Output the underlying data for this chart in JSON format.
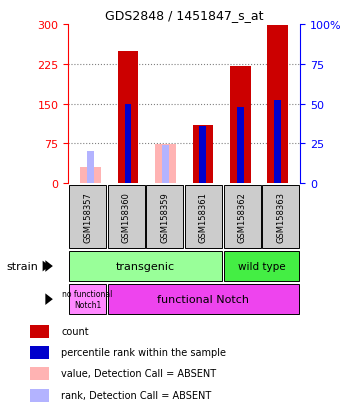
{
  "title": "GDS2848 / 1451847_s_at",
  "samples": [
    "GSM158357",
    "GSM158360",
    "GSM158359",
    "GSM158361",
    "GSM158362",
    "GSM158363"
  ],
  "count_values": [
    null,
    248,
    null,
    110,
    220,
    297
  ],
  "count_absent_values": [
    30,
    null,
    73,
    null,
    null,
    null
  ],
  "rank_values": [
    null,
    50,
    null,
    36,
    48,
    52
  ],
  "rank_absent_values": [
    20,
    null,
    24,
    null,
    null,
    null
  ],
  "ylim_left": [
    0,
    300
  ],
  "ylim_right": [
    0,
    100
  ],
  "yticks_left": [
    0,
    75,
    150,
    225,
    300
  ],
  "yticks_right": [
    0,
    25,
    50,
    75,
    100
  ],
  "color_count": "#cc0000",
  "color_rank": "#0000cc",
  "color_count_absent": "#ffb3b3",
  "color_rank_absent": "#b3b3ff",
  "transgenic_color": "#99ff99",
  "wildtype_color": "#44ee44",
  "nofunc_color": "#ff88ff",
  "func_color": "#ee44ee"
}
